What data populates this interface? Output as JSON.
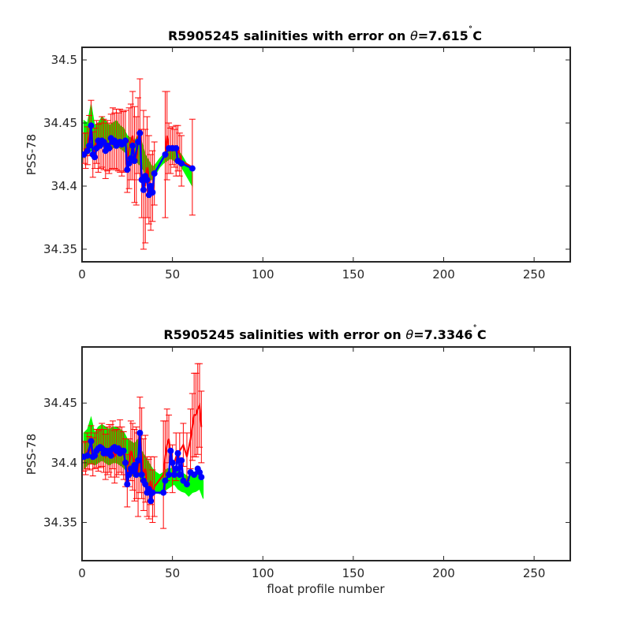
{
  "chart_data": [
    {
      "type": "line",
      "title": "R5905245 salinities with error on θ=7.615˚C",
      "title_parts": {
        "prefix": "R5905245 salinities with error on ",
        "theta": "θ",
        "value": "=7.615",
        "deg": "˚",
        "unit": "C"
      },
      "ylabel": "PSS-78",
      "xlabel": "",
      "xlim": [
        0,
        270
      ],
      "ylim": [
        34.34,
        34.51
      ],
      "xticks": [
        0,
        50,
        100,
        150,
        200,
        250
      ],
      "xtick_labels": [
        "0",
        "50",
        "100",
        "150",
        "200",
        "250"
      ],
      "yticks": [
        34.35,
        34.4,
        34.45,
        34.5
      ],
      "ytick_labels": [
        "34.35",
        "34.4",
        "34.45",
        "34.5"
      ],
      "grid": false,
      "series": [
        {
          "style": "green band (mapped salinity ± error)",
          "x": [
            1,
            3,
            5,
            7,
            9,
            11,
            13,
            15,
            17,
            19,
            21,
            23,
            25,
            27,
            29,
            31,
            33,
            35,
            37,
            39,
            41,
            43,
            45,
            47,
            49,
            51,
            53,
            55,
            57,
            59,
            61
          ],
          "lower": [
            34.422,
            34.425,
            34.428,
            34.425,
            34.43,
            34.432,
            34.43,
            34.428,
            34.43,
            34.432,
            34.43,
            34.428,
            34.425,
            34.422,
            34.42,
            34.418,
            34.415,
            34.41,
            34.405,
            34.405,
            34.41,
            34.415,
            34.418,
            34.42,
            34.422,
            34.42,
            34.418,
            34.415,
            34.41,
            34.405,
            34.4
          ],
          "upper": [
            34.452,
            34.45,
            34.465,
            34.448,
            34.45,
            34.455,
            34.452,
            34.448,
            34.45,
            34.452,
            34.448,
            34.446,
            34.44,
            34.438,
            34.436,
            34.44,
            34.435,
            34.425,
            34.42,
            34.415,
            34.418,
            34.422,
            34.425,
            34.43,
            34.432,
            34.43,
            34.428,
            34.425,
            34.42,
            34.415,
            34.41
          ]
        },
        {
          "style": "red line with error bars (float salinity)",
          "x": [
            1,
            2,
            3,
            4,
            5,
            6,
            7,
            8,
            9,
            10,
            11,
            12,
            13,
            14,
            15,
            16,
            17,
            18,
            19,
            20,
            21,
            22,
            23,
            24,
            25,
            26,
            27,
            28,
            29,
            30,
            31,
            32,
            33,
            34,
            35,
            36,
            37,
            38,
            39,
            40,
            46,
            47,
            48,
            49,
            50,
            51,
            52,
            53,
            54,
            55,
            61
          ],
          "y": [
            34.43,
            34.428,
            34.432,
            34.44,
            34.45,
            34.425,
            34.43,
            34.435,
            34.43,
            34.432,
            34.435,
            34.433,
            34.428,
            34.432,
            34.43,
            34.435,
            34.438,
            34.436,
            34.437,
            34.435,
            34.436,
            34.434,
            34.435,
            34.436,
            34.415,
            34.43,
            34.435,
            34.44,
            34.425,
            34.42,
            34.44,
            34.445,
            34.41,
            34.405,
            34.4,
            34.415,
            34.405,
            34.395,
            34.4,
            34.41,
            34.425,
            34.44,
            34.43,
            34.428,
            34.432,
            34.43,
            34.428,
            34.43,
            34.425,
            34.42,
            34.415
          ],
          "err": [
            0.012,
            0.014,
            0.015,
            0.016,
            0.018,
            0.018,
            0.016,
            0.017,
            0.019,
            0.018,
            0.02,
            0.02,
            0.022,
            0.02,
            0.02,
            0.022,
            0.024,
            0.022,
            0.024,
            0.023,
            0.025,
            0.026,
            0.024,
            0.024,
            0.02,
            0.032,
            0.03,
            0.035,
            0.038,
            0.035,
            0.03,
            0.04,
            0.035,
            0.055,
            0.045,
            0.04,
            0.035,
            0.03,
            0.028,
            0.025,
            0.05,
            0.035,
            0.02,
            0.018,
            0.015,
            0.015,
            0.02,
            0.018,
            0.017,
            0.02,
            0.038
          ]
        },
        {
          "style": "blue markers (calibrated)",
          "x": [
            1,
            3,
            4,
            5,
            6,
            7,
            8,
            9,
            10,
            11,
            12,
            13,
            14,
            15,
            16,
            17,
            18,
            19,
            20,
            21,
            22,
            23,
            24,
            25,
            26,
            27,
            28,
            29,
            31,
            32,
            33,
            34,
            35,
            36,
            37,
            38,
            39,
            40,
            46,
            48,
            50,
            52,
            53,
            55,
            61
          ],
          "y": [
            34.425,
            34.428,
            34.432,
            34.448,
            34.425,
            34.423,
            34.43,
            34.436,
            34.432,
            34.436,
            34.435,
            34.428,
            34.432,
            34.43,
            34.438,
            34.435,
            34.436,
            34.432,
            34.434,
            34.435,
            34.433,
            34.434,
            34.436,
            34.413,
            34.418,
            34.422,
            34.432,
            34.42,
            34.435,
            34.442,
            34.405,
            34.397,
            34.408,
            34.405,
            34.393,
            34.4,
            34.395,
            34.41,
            34.425,
            34.43,
            34.43,
            34.43,
            34.42,
            34.418,
            34.414
          ]
        }
      ]
    },
    {
      "type": "line",
      "title": "R5905245 salinities with error on θ=7.3346˚C",
      "title_parts": {
        "prefix": "R5905245 salinities with error on ",
        "theta": "θ",
        "value": "=7.3346",
        "deg": "˚",
        "unit": "C"
      },
      "ylabel": "PSS-78",
      "xlabel": "float profile number",
      "xlim": [
        0,
        270
      ],
      "ylim": [
        34.318,
        34.497
      ],
      "xticks": [
        0,
        50,
        100,
        150,
        200,
        250
      ],
      "xtick_labels": [
        "0",
        "50",
        "100",
        "150",
        "200",
        "250"
      ],
      "yticks": [
        34.35,
        34.4,
        34.45
      ],
      "ytick_labels": [
        "34.35",
        "34.4",
        "34.45"
      ],
      "grid": false,
      "series": [
        {
          "style": "green band (mapped salinity ± error)",
          "x": [
            1,
            3,
            5,
            7,
            9,
            11,
            13,
            15,
            17,
            19,
            21,
            23,
            25,
            27,
            29,
            31,
            33,
            35,
            37,
            39,
            41,
            43,
            45,
            47,
            49,
            51,
            53,
            55,
            57,
            59,
            61,
            63,
            65,
            67
          ],
          "lower": [
            34.395,
            34.398,
            34.4,
            34.398,
            34.4,
            34.402,
            34.4,
            34.398,
            34.4,
            34.4,
            34.398,
            34.396,
            34.392,
            34.39,
            34.388,
            34.39,
            34.385,
            34.382,
            34.378,
            34.376,
            34.375,
            34.374,
            34.376,
            34.378,
            34.38,
            34.382,
            34.378,
            34.376,
            34.375,
            34.372,
            34.375,
            34.376,
            34.378,
            34.37
          ],
          "upper": [
            34.425,
            34.428,
            34.438,
            34.425,
            34.43,
            34.432,
            34.43,
            34.428,
            34.43,
            34.43,
            34.428,
            34.426,
            34.42,
            34.418,
            34.416,
            34.42,
            34.41,
            34.405,
            34.4,
            34.395,
            34.392,
            34.39,
            34.392,
            34.395,
            34.395,
            34.397,
            34.395,
            34.392,
            34.39,
            34.388,
            34.39,
            34.392,
            34.39,
            34.385
          ]
        },
        {
          "style": "red line with error bars (float salinity)",
          "x": [
            1,
            2,
            3,
            4,
            5,
            6,
            7,
            8,
            9,
            10,
            11,
            12,
            13,
            14,
            15,
            16,
            17,
            18,
            19,
            20,
            21,
            22,
            23,
            24,
            25,
            26,
            27,
            28,
            29,
            30,
            31,
            32,
            33,
            34,
            35,
            36,
            37,
            38,
            39,
            40,
            45,
            46,
            47,
            48,
            50,
            52,
            54,
            56,
            58,
            60,
            61,
            62,
            63,
            64,
            65,
            66
          ],
          "y": [
            34.405,
            34.404,
            34.41,
            34.408,
            34.415,
            34.405,
            34.41,
            34.412,
            34.41,
            34.412,
            34.415,
            34.41,
            34.405,
            34.41,
            34.412,
            34.41,
            34.415,
            34.405,
            34.408,
            34.41,
            34.414,
            34.41,
            34.406,
            34.4,
            34.385,
            34.4,
            34.41,
            34.405,
            34.398,
            34.4,
            34.39,
            34.415,
            34.408,
            34.39,
            34.395,
            34.38,
            34.378,
            34.385,
            34.372,
            34.38,
            34.39,
            34.405,
            34.415,
            34.42,
            34.395,
            34.405,
            34.41,
            34.415,
            34.405,
            34.42,
            34.43,
            34.44,
            34.44,
            34.445,
            34.448,
            34.43
          ],
          "err": [
            0.012,
            0.014,
            0.015,
            0.014,
            0.016,
            0.016,
            0.015,
            0.016,
            0.017,
            0.016,
            0.018,
            0.018,
            0.019,
            0.02,
            0.02,
            0.022,
            0.02,
            0.022,
            0.02,
            0.02,
            0.022,
            0.02,
            0.02,
            0.02,
            0.022,
            0.02,
            0.025,
            0.028,
            0.03,
            0.03,
            0.035,
            0.04,
            0.038,
            0.03,
            0.028,
            0.025,
            0.025,
            0.02,
            0.022,
            0.025,
            0.045,
            0.03,
            0.03,
            0.02,
            0.02,
            0.02,
            0.015,
            0.018,
            0.02,
            0.025,
            0.028,
            0.035,
            0.035,
            0.038,
            0.035,
            0.03
          ]
        },
        {
          "style": "blue markers (calibrated)",
          "x": [
            1,
            3,
            5,
            6,
            7,
            8,
            9,
            10,
            11,
            12,
            13,
            14,
            15,
            16,
            17,
            18,
            19,
            20,
            21,
            22,
            23,
            24,
            25,
            26,
            27,
            28,
            29,
            30,
            31,
            32,
            33,
            34,
            35,
            36,
            37,
            38,
            39,
            45,
            46,
            48,
            49,
            50,
            51,
            52,
            53,
            54,
            55,
            56,
            58,
            60,
            62,
            64,
            65,
            66
          ],
          "y": [
            34.405,
            34.406,
            34.418,
            34.405,
            34.406,
            34.41,
            34.412,
            34.413,
            34.412,
            34.408,
            34.41,
            34.408,
            34.41,
            34.406,
            34.412,
            34.413,
            34.41,
            34.412,
            34.408,
            34.41,
            34.41,
            34.4,
            34.382,
            34.39,
            34.395,
            34.393,
            34.398,
            34.39,
            34.402,
            34.425,
            34.39,
            34.385,
            34.382,
            34.375,
            34.378,
            34.368,
            34.375,
            34.375,
            34.385,
            34.39,
            34.41,
            34.4,
            34.39,
            34.395,
            34.408,
            34.39,
            34.402,
            34.385,
            34.382,
            34.392,
            34.39,
            34.395,
            34.392,
            34.388
          ]
        }
      ]
    }
  ]
}
